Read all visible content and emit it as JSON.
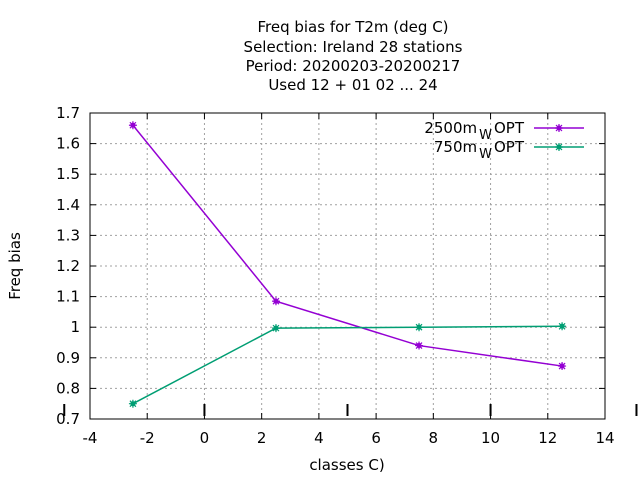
{
  "chart_data": {
    "type": "line",
    "title_lines": [
      "Freq bias  for T2m (deg C)",
      "Selection: Ireland      28 stations",
      "Period: 20200203-20200217",
      "Used  12 + 01 02 ... 24"
    ],
    "xlabel": "classes C)",
    "ylabel": "Freq bias",
    "xlim": [
      -4,
      14
    ],
    "ylim": [
      0.7,
      1.7
    ],
    "xticks": [
      -4,
      -2,
      0,
      2,
      4,
      6,
      8,
      10,
      12,
      14
    ],
    "yticks": [
      0.7,
      0.8,
      0.9,
      1,
      1.1,
      1.2,
      1.3,
      1.4,
      1.5,
      1.6,
      1.7
    ],
    "grid": true,
    "legend_position": "top-right",
    "series": [
      {
        "name_main": "2500m",
        "name_sub": "W",
        "name_suffix": "OPT",
        "color": "#9400d3",
        "x": [
          -2.5,
          2.5,
          7.5,
          12.5
        ],
        "y": [
          1.66,
          1.085,
          0.94,
          0.873
        ]
      },
      {
        "name_main": "750m",
        "name_sub": "W",
        "name_suffix": "OPT",
        "color": "#009e73",
        "x": [
          -2.5,
          2.5,
          7.5,
          12.5
        ],
        "y": [
          0.75,
          0.997,
          1.0,
          1.003
        ]
      }
    ]
  }
}
